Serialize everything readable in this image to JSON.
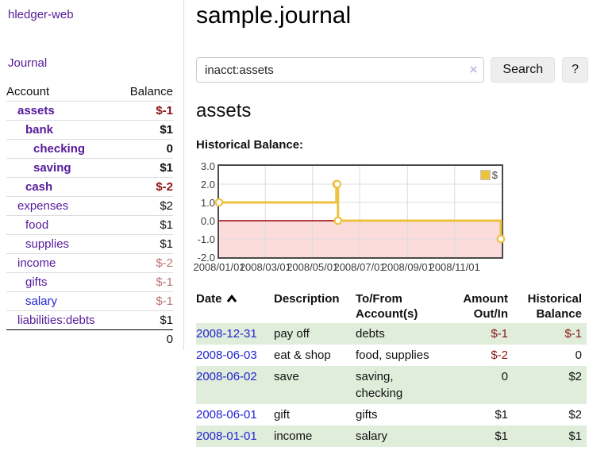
{
  "app": {
    "brand": "hledger-web"
  },
  "sidebar": {
    "journal_link": "Journal",
    "accounts": {
      "header_account": "Account",
      "header_balance": "Balance",
      "rows": [
        {
          "name": "assets",
          "balance": "$-1"
        },
        {
          "name": "bank",
          "balance": "$1"
        },
        {
          "name": "checking",
          "balance": "0"
        },
        {
          "name": "saving",
          "balance": "$1"
        },
        {
          "name": "cash",
          "balance": "$-2"
        },
        {
          "name": "expenses",
          "balance": "$2"
        },
        {
          "name": "food",
          "balance": "$1"
        },
        {
          "name": "supplies",
          "balance": "$1"
        },
        {
          "name": "income",
          "balance": "$-2"
        },
        {
          "name": "gifts",
          "balance": "$-1"
        },
        {
          "name": "salary",
          "balance": "$-1"
        },
        {
          "name": "liabilities:debts",
          "balance": "$1"
        }
      ],
      "total": "0"
    }
  },
  "main": {
    "title": "sample.journal",
    "search": {
      "value": "inacct:assets",
      "clear_icon": "×",
      "button_label": "Search",
      "help_label": "?"
    },
    "account_heading": "assets",
    "chart_title": "Historical Balance:"
  },
  "chart_data": {
    "type": "line",
    "title": "Historical Balance:",
    "series": [
      {
        "name": "$",
        "color": "#edc240",
        "step": true,
        "points": [
          {
            "x": "2008-01-01",
            "y": 1
          },
          {
            "x": "2008-06-01",
            "y": 2
          },
          {
            "x": "2008-06-02",
            "y": 2
          },
          {
            "x": "2008-06-03",
            "y": 0
          },
          {
            "x": "2008-12-31",
            "y": -1
          }
        ]
      }
    ],
    "xrange": [
      "2008-01-01",
      "2009-01-01"
    ],
    "ylim": [
      -2.0,
      3.0
    ],
    "yticks": [
      3.0,
      2.0,
      1.0,
      0.0,
      -1.0,
      -2.0
    ],
    "xticks": [
      "2008/01/01",
      "2008/03/01",
      "2008/05/01",
      "2008/07/01",
      "2008/09/01",
      "2008/11/01"
    ],
    "legend": "$",
    "legend_position": "top-right",
    "grid": true,
    "grid_color": "#dcdcdc",
    "negative_fill": "#fcdbdb",
    "zero_line_color": "#990000",
    "border_color": "#4a4a4a"
  },
  "register": {
    "headers": {
      "date": "Date",
      "description": "Description",
      "account": "To/From Account(s)",
      "amount": "Amount Out/In",
      "balance": "Historical Balance"
    },
    "rows": [
      {
        "date": "2008-12-31",
        "description": "pay off",
        "account": "debts",
        "amount": "$-1",
        "balance": "$-1"
      },
      {
        "date": "2008-06-03",
        "description": "eat & shop",
        "account": "food, supplies",
        "amount": "$-2",
        "balance": "0"
      },
      {
        "date": "2008-06-02",
        "description": "save",
        "account": "saving, checking",
        "amount": "0",
        "balance": "$2"
      },
      {
        "date": "2008-06-01",
        "description": "gift",
        "account": "gifts",
        "amount": "$1",
        "balance": "$2"
      },
      {
        "date": "2008-01-01",
        "description": "income",
        "account": "salary",
        "amount": "$1",
        "balance": "$1"
      }
    ]
  }
}
